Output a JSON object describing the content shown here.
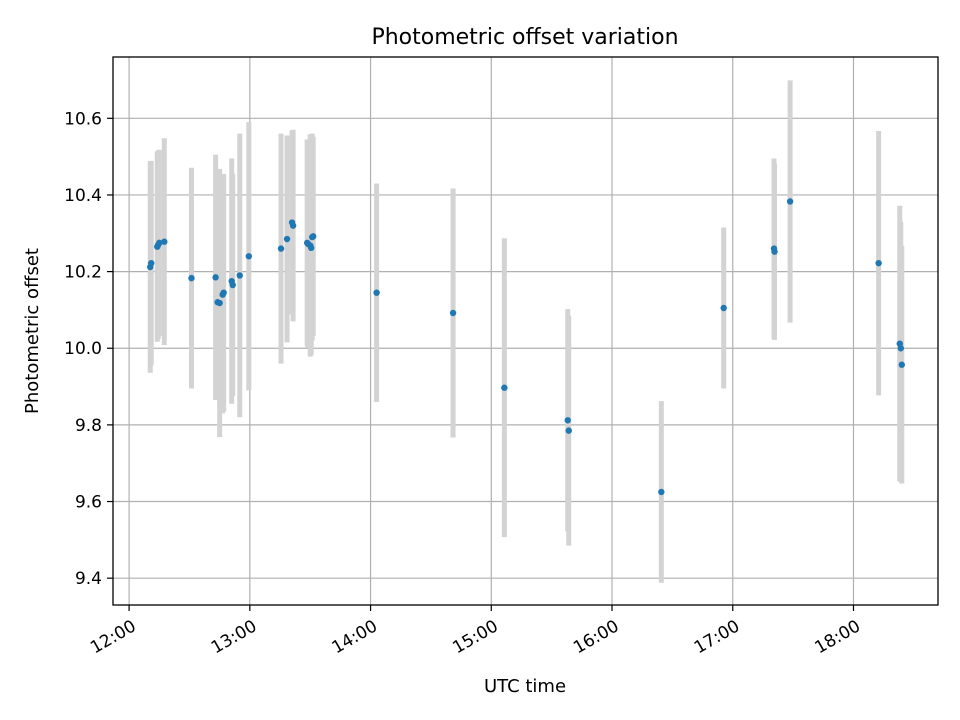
{
  "chart_data": {
    "type": "scatter",
    "title": "Photometric offset variation",
    "xlabel": "UTC time",
    "ylabel": "Photometric offset",
    "x_ticks": [
      "12:00",
      "13:00",
      "14:00",
      "15:00",
      "16:00",
      "17:00",
      "18:00"
    ],
    "y_ticks": [
      "9.4",
      "9.6",
      "9.8",
      "10.0",
      "10.2",
      "10.4",
      "10.6"
    ],
    "xlim": [
      "11:52",
      "18:42"
    ],
    "ylim": [
      9.33,
      10.76
    ],
    "grid": true,
    "point_color": "#1f77b4",
    "errorbar_color": "#d3d3d3",
    "series": [
      {
        "points": [
          {
            "t": "12:10:30",
            "y": 10.212,
            "err": 0.276
          },
          {
            "t": "12:11:00",
            "y": 10.222,
            "err": 0.267
          },
          {
            "t": "12:14:00",
            "y": 10.265,
            "err": 0.248
          },
          {
            "t": "12:14:30",
            "y": 10.27,
            "err": 0.246
          },
          {
            "t": "12:15:00",
            "y": 10.275,
            "err": 0.243
          },
          {
            "t": "12:17:30",
            "y": 10.278,
            "err": 0.27
          },
          {
            "t": "12:31:00",
            "y": 10.183,
            "err": 0.288
          },
          {
            "t": "12:43:00",
            "y": 10.185,
            "err": 0.32
          },
          {
            "t": "12:44:00",
            "y": 10.12,
            "err": 0.25
          },
          {
            "t": "12:45:00",
            "y": 10.118,
            "err": 0.35
          },
          {
            "t": "12:46:30",
            "y": 10.14,
            "err": 0.31
          },
          {
            "t": "12:47:00",
            "y": 10.145,
            "err": 0.31
          },
          {
            "t": "12:51:00",
            "y": 10.175,
            "err": 0.32
          },
          {
            "t": "12:51:30",
            "y": 10.165,
            "err": 0.29
          },
          {
            "t": "12:55:00",
            "y": 10.19,
            "err": 0.37
          },
          {
            "t": "12:59:30",
            "y": 10.24,
            "err": 0.35
          },
          {
            "t": "13:15:30",
            "y": 10.26,
            "err": 0.3
          },
          {
            "t": "13:18:30",
            "y": 10.285,
            "err": 0.27
          },
          {
            "t": "13:21:00",
            "y": 10.328,
            "err": 0.24
          },
          {
            "t": "13:21:30",
            "y": 10.32,
            "err": 0.25
          },
          {
            "t": "13:28:30",
            "y": 10.275,
            "err": 0.27
          },
          {
            "t": "13:29:00",
            "y": 10.272,
            "err": 0.27
          },
          {
            "t": "13:30:00",
            "y": 10.268,
            "err": 0.29
          },
          {
            "t": "13:30:30",
            "y": 10.262,
            "err": 0.28
          },
          {
            "t": "13:31:00",
            "y": 10.29,
            "err": 0.27
          },
          {
            "t": "13:31:30",
            "y": 10.292,
            "err": 0.26
          },
          {
            "t": "14:03:00",
            "y": 10.145,
            "err": 0.285
          },
          {
            "t": "14:41:00",
            "y": 10.092,
            "err": 0.325
          },
          {
            "t": "15:06:30",
            "y": 9.897,
            "err": 0.39
          },
          {
            "t": "15:38:00",
            "y": 9.812,
            "err": 0.29
          },
          {
            "t": "15:38:30",
            "y": 9.785,
            "err": 0.3
          },
          {
            "t": "16:24:30",
            "y": 9.625,
            "err": 0.237
          },
          {
            "t": "16:55:30",
            "y": 10.105,
            "err": 0.21
          },
          {
            "t": "17:20:30",
            "y": 10.26,
            "err": 0.235
          },
          {
            "t": "17:20:45",
            "y": 10.252,
            "err": 0.23
          },
          {
            "t": "17:28:30",
            "y": 10.383,
            "err": 0.316
          },
          {
            "t": "18:12:30",
            "y": 10.222,
            "err": 0.345
          },
          {
            "t": "18:23:00",
            "y": 10.012,
            "err": 0.36
          },
          {
            "t": "18:23:30",
            "y": 10.0,
            "err": 0.33
          },
          {
            "t": "18:24:00",
            "y": 9.957,
            "err": 0.31
          }
        ]
      }
    ]
  }
}
